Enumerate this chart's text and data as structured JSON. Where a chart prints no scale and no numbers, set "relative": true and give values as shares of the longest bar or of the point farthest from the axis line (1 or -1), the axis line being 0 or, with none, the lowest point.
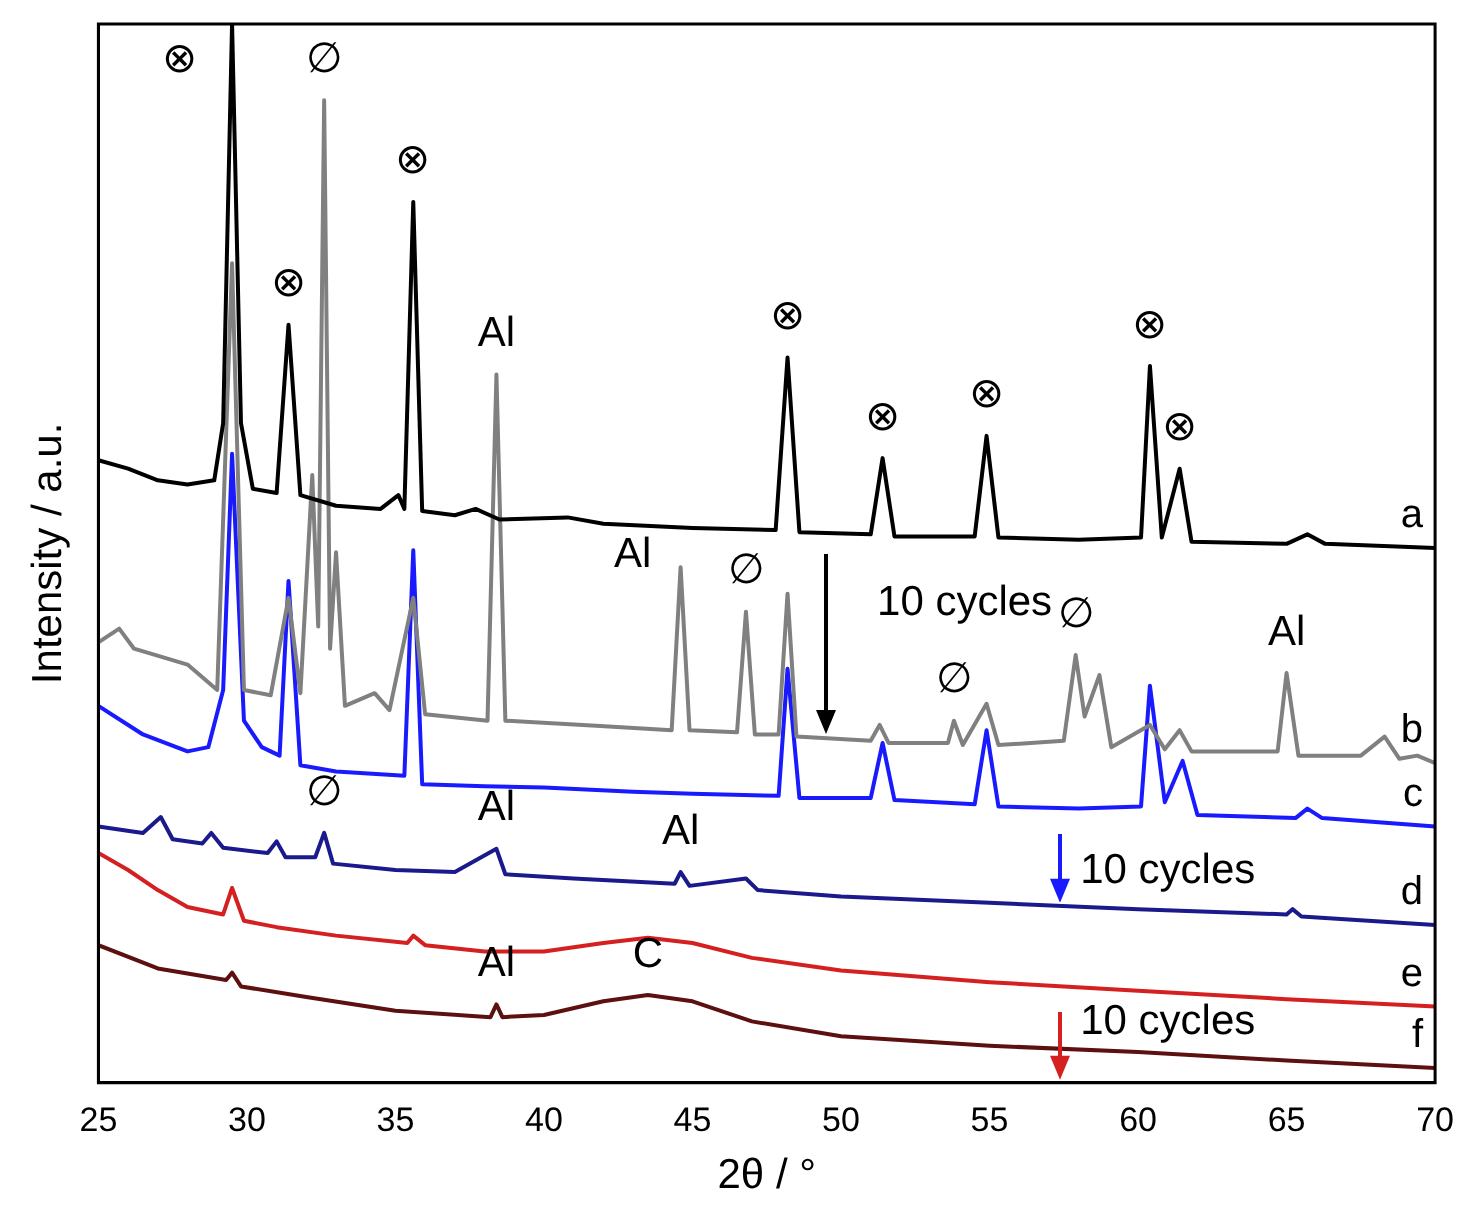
{
  "chart_data": {
    "type": "line",
    "relative": true,
    "xlabel": "2θ / °",
    "ylabel": "Intensity / a.u.",
    "xlim": [
      25,
      70
    ],
    "xticks": [
      25,
      30,
      35,
      40,
      45,
      50,
      55,
      60,
      65,
      70
    ],
    "marker": "none",
    "series": [
      {
        "name": "a",
        "color": "#000000",
        "x": [
          25,
          26,
          27,
          28,
          28.9,
          29.2,
          29.5,
          29.8,
          30.2,
          31,
          31.4,
          31.8,
          33,
          34.5,
          35.1,
          35.3,
          35.6,
          35.9,
          37,
          37.7,
          38.5,
          40.8,
          42,
          45,
          47.8,
          48.2,
          48.6,
          51,
          51.4,
          51.8,
          54.5,
          54.9,
          55.3,
          58,
          60.1,
          60.4,
          60.8,
          61.4,
          61.8,
          65,
          65.7,
          66.3,
          70
        ],
        "values": [
          0.588,
          0.58,
          0.569,
          0.565,
          0.569,
          0.623,
          1.0,
          0.623,
          0.561,
          0.557,
          0.716,
          0.555,
          0.545,
          0.542,
          0.555,
          0.542,
          0.832,
          0.54,
          0.536,
          0.542,
          0.532,
          0.534,
          0.528,
          0.524,
          0.522,
          0.685,
          0.52,
          0.518,
          0.59,
          0.516,
          0.516,
          0.611,
          0.515,
          0.513,
          0.515,
          0.677,
          0.515,
          0.58,
          0.511,
          0.509,
          0.518,
          0.509,
          0.505
        ]
      },
      {
        "name": "b",
        "color": "#808080",
        "x": [
          25,
          25.7,
          26.2,
          28,
          29,
          29.5,
          29.9,
          30.8,
          31.4,
          31.8,
          32.2,
          32.4,
          32.6,
          32.8,
          33,
          33.3,
          34.3,
          34.8,
          35.6,
          36,
          38.1,
          38.4,
          38.7,
          41.9,
          44.3,
          44.6,
          44.9,
          46.5,
          46.8,
          47.1,
          47.9,
          48.2,
          48.5,
          51,
          51.3,
          51.6,
          53.6,
          53.8,
          54.1,
          54.9,
          55.3,
          57.5,
          57.9,
          58.2,
          58.7,
          59.1,
          60.4,
          60.9,
          61.4,
          61.8,
          64.7,
          65,
          65.4,
          67.5,
          68.3,
          68.8,
          69.4,
          70
        ],
        "values": [
          0.416,
          0.429,
          0.41,
          0.395,
          0.371,
          0.774,
          0.371,
          0.366,
          0.458,
          0.368,
          0.574,
          0.431,
          0.928,
          0.41,
          0.501,
          0.356,
          0.368,
          0.352,
          0.458,
          0.348,
          0.342,
          0.669,
          0.342,
          0.337,
          0.333,
          0.487,
          0.333,
          0.331,
          0.445,
          0.329,
          0.329,
          0.462,
          0.327,
          0.323,
          0.338,
          0.321,
          0.321,
          0.342,
          0.319,
          0.358,
          0.319,
          0.323,
          0.404,
          0.346,
          0.385,
          0.317,
          0.338,
          0.315,
          0.333,
          0.313,
          0.313,
          0.387,
          0.309,
          0.309,
          0.327,
          0.306,
          0.309,
          0.302
        ]
      },
      {
        "name": "c",
        "color": "#1a1aff",
        "x": [
          25,
          26.5,
          28,
          28.7,
          29.2,
          29.5,
          29.9,
          30.5,
          31.1,
          31.4,
          31.8,
          33,
          35.3,
          35.6,
          35.9,
          38,
          40,
          43,
          45,
          47.9,
          48.2,
          48.6,
          51,
          51.4,
          51.8,
          54.5,
          54.9,
          55.3,
          58,
          60.1,
          60.4,
          60.9,
          61.5,
          62,
          65.3,
          65.7,
          66.2,
          70
        ],
        "values": [
          0.356,
          0.329,
          0.313,
          0.317,
          0.371,
          0.594,
          0.342,
          0.317,
          0.309,
          0.474,
          0.3,
          0.294,
          0.29,
          0.503,
          0.282,
          0.28,
          0.279,
          0.275,
          0.273,
          0.271,
          0.391,
          0.269,
          0.269,
          0.321,
          0.267,
          0.263,
          0.333,
          0.261,
          0.259,
          0.261,
          0.375,
          0.265,
          0.304,
          0.253,
          0.25,
          0.259,
          0.25,
          0.242
        ]
      },
      {
        "name": "d",
        "color": "#1a1a8c",
        "x": [
          25,
          26.5,
          27.1,
          27.5,
          28.5,
          28.8,
          29.2,
          30.7,
          31,
          31.3,
          32.3,
          32.6,
          32.9,
          35,
          37,
          38.4,
          38.7,
          41,
          44.4,
          44.6,
          44.9,
          46.8,
          47.2,
          50,
          55,
          60,
          65,
          65.2,
          65.5,
          70
        ],
        "values": [
          0.242,
          0.236,
          0.251,
          0.23,
          0.226,
          0.236,
          0.222,
          0.217,
          0.228,
          0.213,
          0.213,
          0.236,
          0.207,
          0.201,
          0.199,
          0.221,
          0.197,
          0.193,
          0.188,
          0.199,
          0.186,
          0.193,
          0.182,
          0.176,
          0.17,
          0.164,
          0.159,
          0.164,
          0.157,
          0.149
        ]
      },
      {
        "name": "e",
        "color": "#d42020",
        "x": [
          25,
          26,
          27,
          28,
          29.2,
          29.5,
          29.9,
          31,
          33,
          35.4,
          35.6,
          36,
          38,
          40,
          42,
          43.5,
          45,
          47,
          50,
          55,
          60,
          65,
          70
        ],
        "values": [
          0.217,
          0.201,
          0.182,
          0.166,
          0.159,
          0.184,
          0.153,
          0.147,
          0.139,
          0.132,
          0.139,
          0.13,
          0.124,
          0.124,
          0.132,
          0.137,
          0.132,
          0.118,
          0.106,
          0.095,
          0.087,
          0.079,
          0.072
        ]
      },
      {
        "name": "f",
        "color": "#5c1010",
        "x": [
          25,
          27,
          29.3,
          29.5,
          29.8,
          32,
          35,
          38.2,
          38.4,
          38.6,
          40,
          42,
          43.5,
          45,
          47,
          50,
          55,
          60,
          65,
          70
        ],
        "values": [
          0.13,
          0.108,
          0.097,
          0.104,
          0.091,
          0.081,
          0.068,
          0.062,
          0.074,
          0.062,
          0.064,
          0.077,
          0.083,
          0.077,
          0.058,
          0.044,
          0.035,
          0.029,
          0.021,
          0.014
        ]
      }
    ],
    "annotations": [
      {
        "text": "⊗",
        "x": 29.5,
        "y": 1.0
      },
      {
        "text": "⊗",
        "x": 31.4,
        "y": 0.716
      },
      {
        "text": "∅",
        "x": 32.6,
        "y": 0.928
      },
      {
        "text": "⊗",
        "x": 35.6,
        "y": 0.832
      },
      {
        "text": "Al",
        "x": 38.4,
        "y": 0.669
      },
      {
        "text": "Al",
        "x": 44.6,
        "y": 0.487
      },
      {
        "text": "∅",
        "x": 46.8,
        "y": 0.445
      },
      {
        "text": "⊗",
        "x": 48.2,
        "y": 0.685
      },
      {
        "text": "⊗",
        "x": 51.4,
        "y": 0.59
      },
      {
        "text": "⊗",
        "x": 54.9,
        "y": 0.611
      },
      {
        "text": "⊗",
        "x": 60.4,
        "y": 0.677
      },
      {
        "text": "⊗",
        "x": 61.4,
        "y": 0.58
      },
      {
        "text": "∅",
        "x": 53.8,
        "y": 0.342
      },
      {
        "text": "∅",
        "x": 57.9,
        "y": 0.404
      },
      {
        "text": "Al",
        "x": 65.0,
        "y": 0.387
      },
      "10 cycles",
      {
        "text": "∅",
        "x": 32.6,
        "y": 0.236
      },
      {
        "text": "Al",
        "x": 38.4,
        "y": 0.221
      },
      {
        "text": "Al",
        "x": 44.6,
        "y": 0.199
      },
      "10 cycles",
      {
        "text": "Al",
        "x": 38.4,
        "y": 0.074
      },
      {
        "text": "C",
        "x": 43.5,
        "y": 0.083
      },
      "10 cycles"
    ]
  }
}
